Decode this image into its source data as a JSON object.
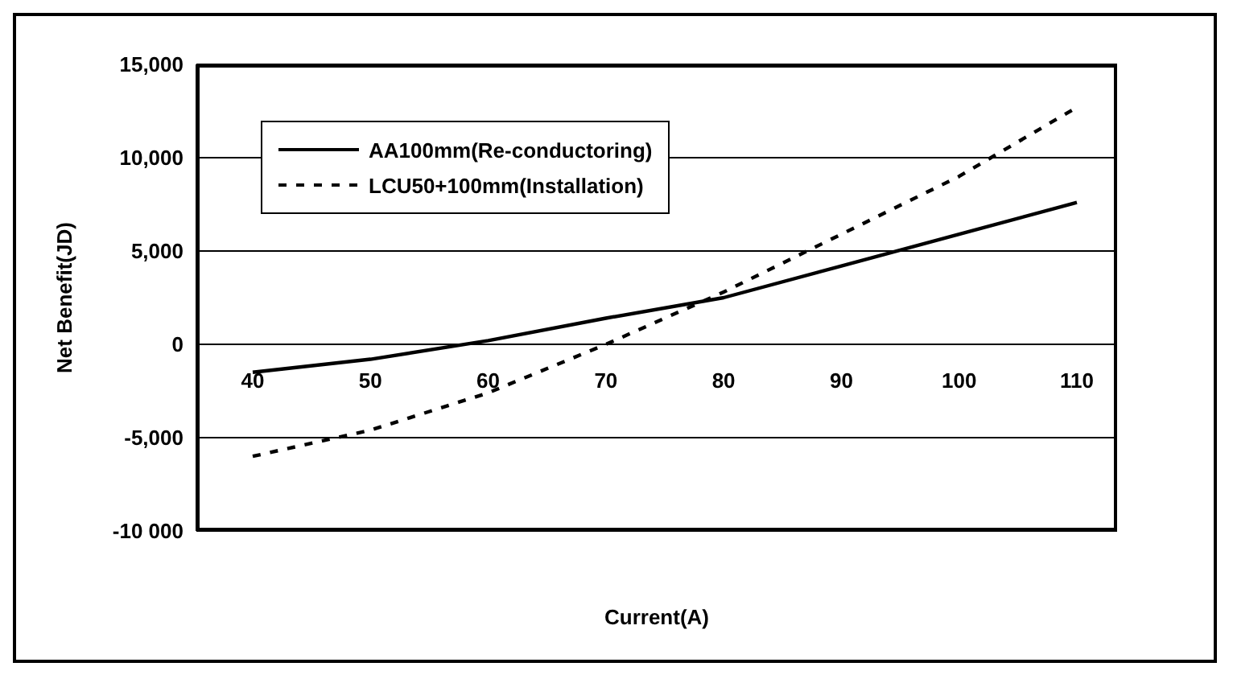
{
  "chart_data": {
    "type": "line",
    "xlabel": "Current(A)",
    "ylabel": "Net Benefit(JD)",
    "categories": [
      "40",
      "50",
      "60",
      "70",
      "80",
      "90",
      "100",
      "110"
    ],
    "series": [
      {
        "name": "AA100mm(Re-conductoring)",
        "color": "#000000",
        "line_style": "solid",
        "values": [
          -1500,
          -800,
          200,
          1400,
          2500,
          4200,
          5900,
          7600
        ]
      },
      {
        "name": "LCU50+100mm(Installation)",
        "color": "#000000",
        "line_style": "dashed",
        "values": [
          -6000,
          -4600,
          -2600,
          0,
          2800,
          5900,
          9000,
          12700
        ]
      }
    ],
    "ylim": [
      -10000,
      15000
    ],
    "yticks": [
      {
        "value": -10000,
        "label": "-10 000"
      },
      {
        "value": -5000,
        "label": "-5,000"
      },
      0,
      {
        "value": 5000,
        "label": "5,000"
      },
      {
        "value": 10000,
        "label": "10,000"
      },
      {
        "value": 15000,
        "label": "15,000"
      }
    ],
    "grid": "y",
    "legend": "top left",
    "marker": "none"
  }
}
